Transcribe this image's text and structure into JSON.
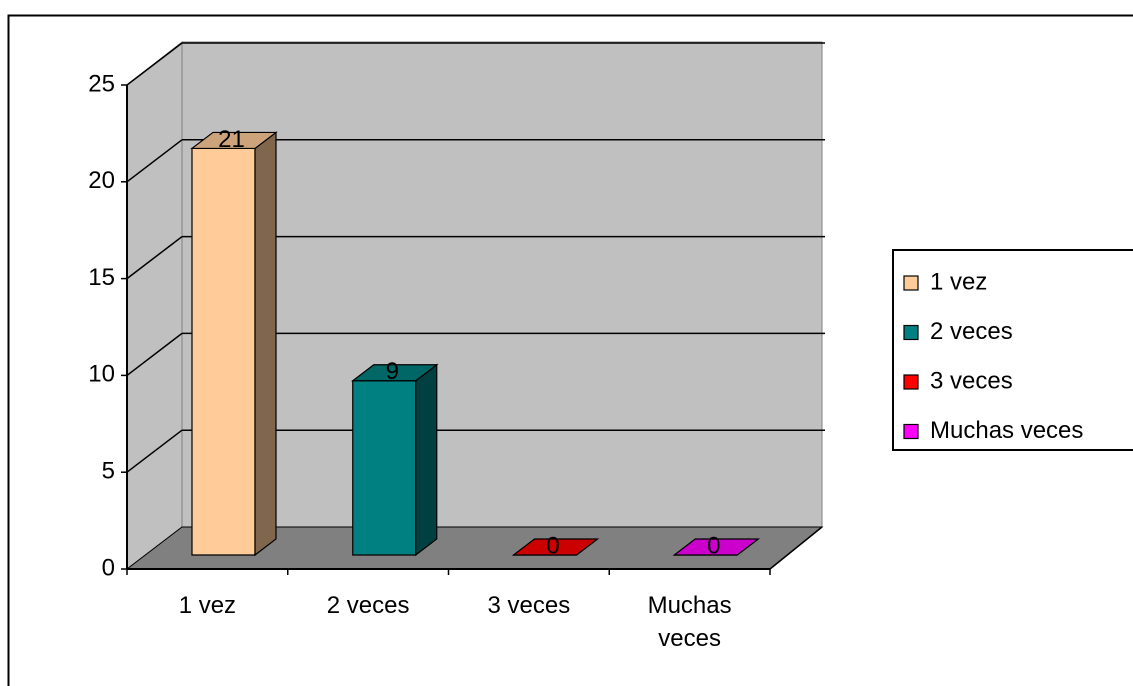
{
  "chart_data": {
    "type": "bar3d",
    "categories": [
      "1 vez",
      "2 veces",
      "3 veces",
      "Muchas veces"
    ],
    "values": [
      21,
      9,
      0,
      0
    ],
    "colors": [
      "#FFCC99",
      "#008080",
      "#FF0000",
      "#FF00FF"
    ],
    "ylim": [
      0,
      25
    ],
    "yticks": [
      0,
      5,
      10,
      15,
      20,
      25
    ],
    "grid": true,
    "legend": "right"
  }
}
